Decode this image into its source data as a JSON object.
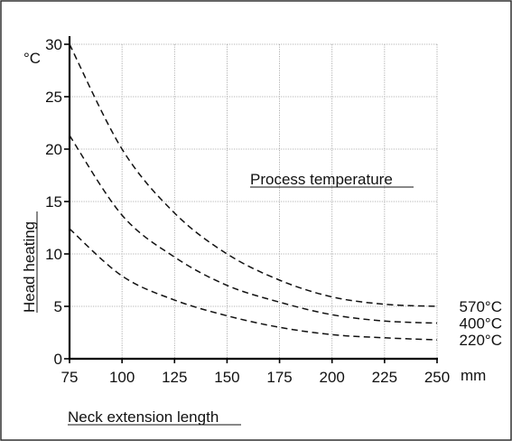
{
  "chart_data": {
    "type": "line",
    "title": "",
    "xlabel": "Neck extension length",
    "ylabel": "Head heating",
    "x_unit": "mm",
    "y_unit": "°C",
    "annotation": "Process temperature",
    "xlim": [
      75,
      250
    ],
    "ylim": [
      0,
      30
    ],
    "x_ticks": [
      75,
      100,
      125,
      150,
      175,
      200,
      225,
      250
    ],
    "y_ticks": [
      0,
      5,
      10,
      15,
      20,
      25,
      30
    ],
    "grid": true,
    "x": [
      75,
      100,
      125,
      150,
      175,
      200,
      225,
      250
    ],
    "series": [
      {
        "name": "570°C",
        "values": [
          30.0,
          20.0,
          13.9,
          10.0,
          7.5,
          5.9,
          5.2,
          5.0
        ]
      },
      {
        "name": "400°C",
        "values": [
          21.3,
          13.7,
          9.7,
          7.0,
          5.4,
          4.2,
          3.6,
          3.4
        ]
      },
      {
        "name": "220°C",
        "values": [
          12.4,
          7.9,
          5.6,
          4.1,
          3.0,
          2.3,
          2.0,
          1.8
        ]
      }
    ]
  }
}
